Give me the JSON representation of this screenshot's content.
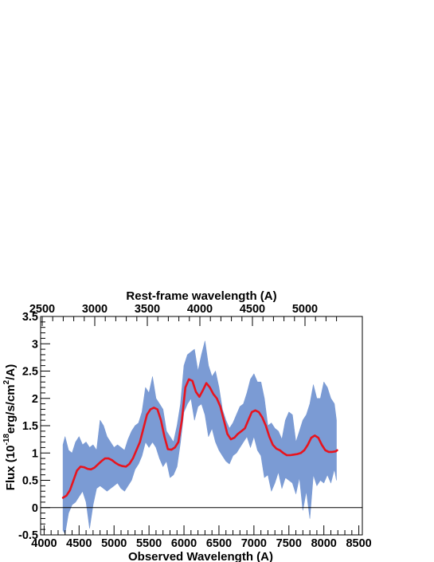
{
  "chart_data": {
    "type": "line",
    "title": "",
    "xlabel": "Observed Wavelength (A)",
    "ylabel_main": "Flux (10",
    "ylabel_exp": "-18",
    "ylabel_units": "erg/s/cm",
    "ylabel_sq": "2",
    "ylabel_tail": "/A)",
    "x2label": "Rest-frame wavelength (A)",
    "xlim": [
      3950,
      8550
    ],
    "ylim": [
      -0.5,
      3.5
    ],
    "x2_ticks": [
      "2500",
      "3000",
      "3500",
      "4000",
      "4500",
      "5000"
    ],
    "x2_tick_values": [
      2500,
      3000,
      3500,
      4000,
      4500,
      5000
    ],
    "x_ticks": [
      "4000",
      "4500",
      "5000",
      "5500",
      "6000",
      "6500",
      "7000",
      "7500",
      "8000",
      "8500"
    ],
    "x_tick_values": [
      4000,
      4500,
      5000,
      5500,
      6000,
      6500,
      7000,
      7500,
      8000,
      8500
    ],
    "y_ticks": [
      "-0.5",
      "0",
      "0.5",
      "1",
      "1.5",
      "2",
      "2.5",
      "3",
      "3.5"
    ],
    "y_tick_values": [
      -0.5,
      0,
      0.5,
      1,
      1.5,
      2,
      2.5,
      3,
      3.5
    ],
    "zero_line": 0,
    "grid": false,
    "series": [
      {
        "kind": "band",
        "color": "#7b9bd4",
        "x": [
          4270,
          4300,
          4350,
          4400,
          4450,
          4500,
          4550,
          4600,
          4650,
          4700,
          4750,
          4800,
          4850,
          4900,
          4950,
          5000,
          5050,
          5100,
          5150,
          5200,
          5250,
          5300,
          5350,
          5400,
          5450,
          5500,
          5550,
          5600,
          5650,
          5700,
          5750,
          5800,
          5850,
          5900,
          5950,
          6000,
          6050,
          6100,
          6150,
          6200,
          6250,
          6300,
          6350,
          6400,
          6450,
          6500,
          6550,
          6600,
          6650,
          6700,
          6750,
          6800,
          6850,
          6900,
          6950,
          7000,
          7050,
          7100,
          7150,
          7200,
          7250,
          7300,
          7350,
          7400,
          7450,
          7500,
          7550,
          7600,
          7650,
          7700,
          7750,
          7800,
          7850,
          7900,
          7950,
          8000,
          8050,
          8100,
          8150,
          8180
        ],
        "upper": [
          1.15,
          1.3,
          1.05,
          1.0,
          1.2,
          1.3,
          1.15,
          1.2,
          1.1,
          1.15,
          1.05,
          1.6,
          1.5,
          1.3,
          1.2,
          1.1,
          1.15,
          1.1,
          1.05,
          1.25,
          1.4,
          1.5,
          1.55,
          1.75,
          2.2,
          2.1,
          2.4,
          2.0,
          1.9,
          1.8,
          1.4,
          1.3,
          1.2,
          1.5,
          1.9,
          2.6,
          2.8,
          2.85,
          2.9,
          2.5,
          2.8,
          3.05,
          2.6,
          2.4,
          2.5,
          2.2,
          1.8,
          1.6,
          1.45,
          1.55,
          1.7,
          1.85,
          1.9,
          2.1,
          2.35,
          2.45,
          2.3,
          2.3,
          2.0,
          1.5,
          1.55,
          1.45,
          1.4,
          1.25,
          1.6,
          1.75,
          1.7,
          1.2,
          1.4,
          1.6,
          1.7,
          1.9,
          2.25,
          2.0,
          2.0,
          2.3,
          2.2,
          2.0,
          1.9,
          1.6
        ],
        "lower": [
          -0.42,
          -0.48,
          -0.1,
          0.05,
          0.1,
          0.2,
          0.3,
          0.1,
          -0.38,
          0.05,
          0.35,
          0.4,
          0.35,
          0.3,
          0.35,
          0.4,
          0.45,
          0.35,
          0.3,
          0.4,
          0.5,
          0.7,
          0.8,
          0.95,
          1.2,
          1.1,
          1.2,
          1.1,
          0.9,
          0.75,
          0.85,
          0.55,
          0.6,
          0.75,
          1.2,
          1.75,
          1.9,
          2.0,
          1.6,
          1.85,
          1.9,
          1.7,
          1.3,
          1.45,
          1.2,
          1.05,
          0.95,
          0.85,
          0.8,
          0.95,
          1.0,
          1.1,
          1.2,
          1.3,
          1.1,
          1.3,
          1.05,
          0.95,
          0.55,
          0.6,
          0.3,
          0.45,
          0.65,
          0.35,
          0.55,
          0.5,
          0.45,
          0.25,
          0.55,
          -0.05,
          0.3,
          -0.2,
          0.6,
          0.4,
          0.5,
          0.45,
          0.6,
          0.45,
          0.7,
          0.5
        ]
      },
      {
        "kind": "line",
        "color": "#e8141e",
        "x": [
          4270,
          4320,
          4370,
          4420,
          4470,
          4520,
          4570,
          4620,
          4670,
          4720,
          4770,
          4820,
          4870,
          4920,
          4970,
          5020,
          5070,
          5120,
          5170,
          5220,
          5270,
          5320,
          5370,
          5420,
          5470,
          5520,
          5570,
          5620,
          5670,
          5720,
          5770,
          5820,
          5870,
          5920,
          5970,
          6020,
          6070,
          6120,
          6170,
          6220,
          6270,
          6320,
          6370,
          6420,
          6470,
          6520,
          6570,
          6620,
          6670,
          6720,
          6770,
          6820,
          6870,
          6920,
          6970,
          7020,
          7070,
          7120,
          7170,
          7220,
          7270,
          7320,
          7370,
          7420,
          7470,
          7520,
          7570,
          7620,
          7670,
          7720,
          7770,
          7820,
          7870,
          7920,
          7970,
          8020,
          8070,
          8120,
          8170,
          8190
        ],
        "values": [
          0.18,
          0.22,
          0.32,
          0.5,
          0.68,
          0.75,
          0.74,
          0.71,
          0.7,
          0.73,
          0.79,
          0.85,
          0.9,
          0.9,
          0.87,
          0.82,
          0.78,
          0.76,
          0.75,
          0.8,
          0.9,
          1.05,
          1.2,
          1.45,
          1.7,
          1.8,
          1.83,
          1.8,
          1.6,
          1.3,
          1.07,
          1.06,
          1.1,
          1.2,
          1.6,
          2.2,
          2.35,
          2.32,
          2.12,
          2.03,
          2.15,
          2.28,
          2.2,
          2.08,
          2.0,
          1.85,
          1.6,
          1.35,
          1.25,
          1.28,
          1.35,
          1.4,
          1.45,
          1.6,
          1.75,
          1.78,
          1.75,
          1.65,
          1.5,
          1.3,
          1.15,
          1.08,
          1.05,
          1.0,
          0.96,
          0.96,
          0.97,
          0.98,
          1.0,
          1.05,
          1.15,
          1.28,
          1.32,
          1.28,
          1.15,
          1.05,
          1.02,
          1.02,
          1.03,
          1.05
        ]
      }
    ]
  }
}
